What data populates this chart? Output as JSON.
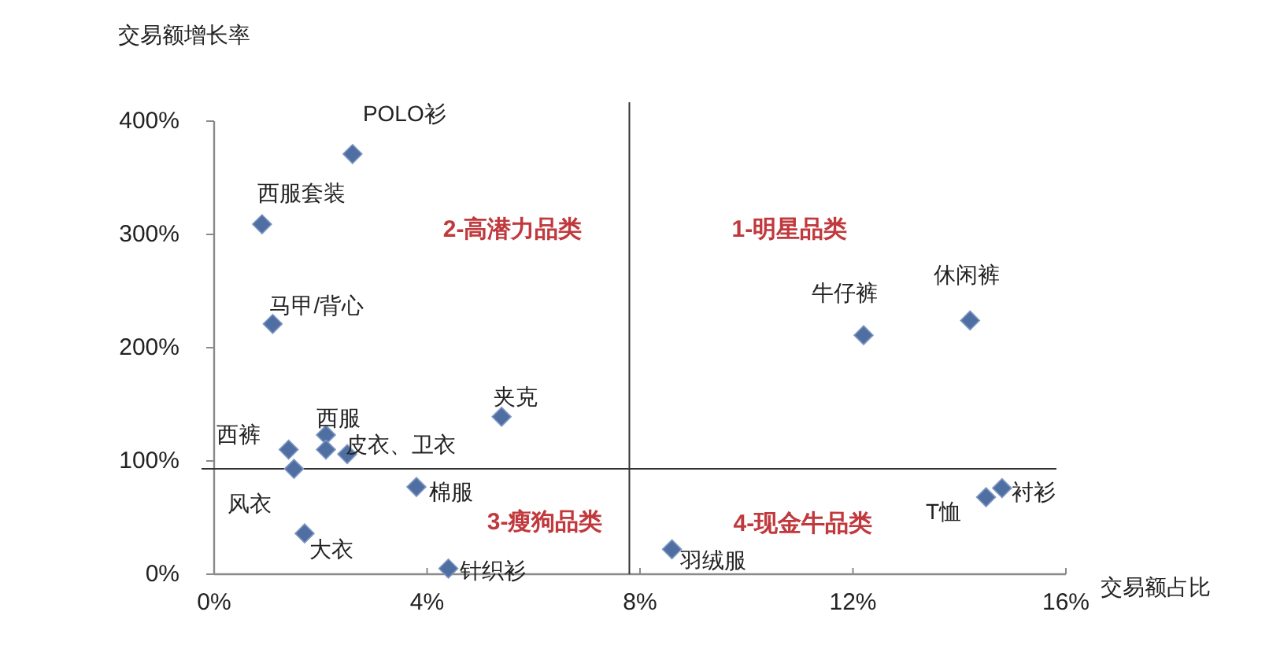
{
  "chart_data": {
    "type": "scatter",
    "ylabel": "交易额增长率",
    "xlabel": "交易额占比",
    "x": [
      2.6,
      0.9,
      1.1,
      5.4,
      2.1,
      2.1,
      2.5,
      1.4,
      1.5,
      3.8,
      1.7,
      4.4,
      12.2,
      14.2,
      14.8,
      14.5,
      8.6
    ],
    "values": [
      371,
      309,
      221,
      139,
      123,
      110,
      106,
      110,
      93,
      77,
      36,
      5,
      211,
      224,
      76,
      68,
      22
    ],
    "color": "#4f6fa3",
    "marker": "diamond",
    "xlim": [
      0,
      16
    ],
    "xticks": [
      {
        "value": 0,
        "label": "0%"
      },
      {
        "value": 4,
        "label": "4%"
      },
      {
        "value": 8,
        "label": "8%"
      },
      {
        "value": 12,
        "label": "12%"
      },
      {
        "value": 16,
        "label": "16%"
      }
    ],
    "ylim": [
      0,
      400
    ],
    "yticks": [
      {
        "value": 0,
        "label": "0%"
      },
      {
        "value": 100,
        "label": "100%"
      },
      {
        "value": 200,
        "label": "200%"
      },
      {
        "value": 300,
        "label": "300%"
      },
      {
        "value": 400,
        "label": "400%"
      }
    ],
    "ref_lines": [
      {
        "axis": "x",
        "value": 7.8,
        "color": "#333333"
      },
      {
        "axis": "y",
        "value": 93,
        "color": "#333333"
      }
    ],
    "annotations": [
      "1-明星品类",
      "2-高潜力品类",
      "3-瘦狗品类",
      "4-现金牛品类",
      {
        "text": "POLO衫",
        "x": 2.6,
        "y": 371
      },
      {
        "text": "西服套装",
        "x": 0.9,
        "y": 309
      },
      {
        "text": "马甲/背心",
        "x": 1.1,
        "y": 221
      },
      {
        "text": "夹克",
        "x": 5.4,
        "y": 139
      },
      {
        "text": "西服",
        "x": 2.1,
        "y": 123
      },
      {
        "text": "皮衣、卫衣",
        "x": 2.5,
        "y": 106
      },
      {
        "text": "西裤",
        "x": 1.4,
        "y": 110
      },
      {
        "text": "风衣",
        "x": 1.5,
        "y": 93
      },
      {
        "text": "棉服",
        "x": 3.8,
        "y": 77
      },
      {
        "text": "大衣",
        "x": 1.7,
        "y": 36
      },
      {
        "text": "针织衫",
        "x": 4.4,
        "y": 5
      },
      {
        "text": "牛仔裤",
        "x": 12.2,
        "y": 211
      },
      {
        "text": "休闲裤",
        "x": 14.2,
        "y": 224
      },
      {
        "text": "衬衫",
        "x": 14.8,
        "y": 76
      },
      {
        "text": "T恤",
        "x": 14.5,
        "y": 68
      },
      {
        "text": "羽绒服",
        "x": 8.6,
        "y": 22
      }
    ]
  }
}
